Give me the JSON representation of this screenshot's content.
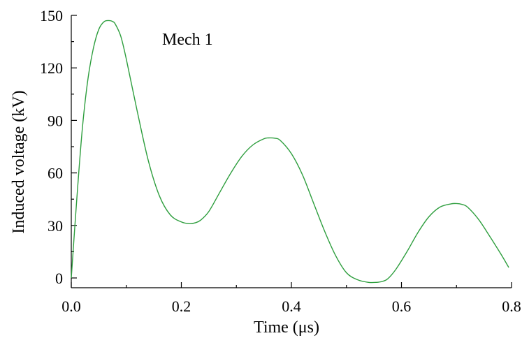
{
  "chart_data": {
    "type": "line",
    "title": "",
    "xlabel": "Time  (μs)",
    "ylabel": "Induced voltage  (kV)",
    "annotation": "Mech 1",
    "xlim": [
      0,
      0.8
    ],
    "ylim": [
      -5,
      150
    ],
    "xticks": [
      "0.0",
      "0.2",
      "0.4",
      "0.6",
      "0.8"
    ],
    "yticks": [
      "0",
      "30",
      "60",
      "90",
      "120",
      "150"
    ],
    "grid": false,
    "line_color": "#2e9e3e",
    "series": [
      {
        "x": [
          0,
          0.01,
          0.02,
          0.03,
          0.04,
          0.05,
          0.06,
          0.07,
          0.075,
          0.08,
          0.09,
          0.1,
          0.12,
          0.14,
          0.16,
          0.18,
          0.2,
          0.215,
          0.225,
          0.235,
          0.25,
          0.27,
          0.29,
          0.31,
          0.33,
          0.35,
          0.36,
          0.37,
          0.38,
          0.4,
          0.42,
          0.44,
          0.46,
          0.48,
          0.5,
          0.52,
          0.54,
          0.555,
          0.565,
          0.575,
          0.59,
          0.61,
          0.63,
          0.65,
          0.67,
          0.69,
          0.7,
          0.71,
          0.72,
          0.74,
          0.76,
          0.78,
          0.795
        ],
        "y": [
          0,
          45,
          85,
          113,
          131,
          142,
          146.5,
          147,
          146.5,
          145,
          138,
          125,
          95,
          67,
          47,
          36,
          32,
          31,
          31.5,
          33,
          38,
          49,
          60,
          69.5,
          76,
          79.5,
          80,
          79.8,
          78.5,
          71,
          59,
          43,
          27,
          13,
          3,
          -1,
          -2.5,
          -2.5,
          -2,
          -0.5,
          5,
          15,
          26,
          35,
          40.5,
          42.3,
          42.5,
          42,
          40.5,
          33.5,
          24,
          14,
          6
        ]
      }
    ]
  }
}
